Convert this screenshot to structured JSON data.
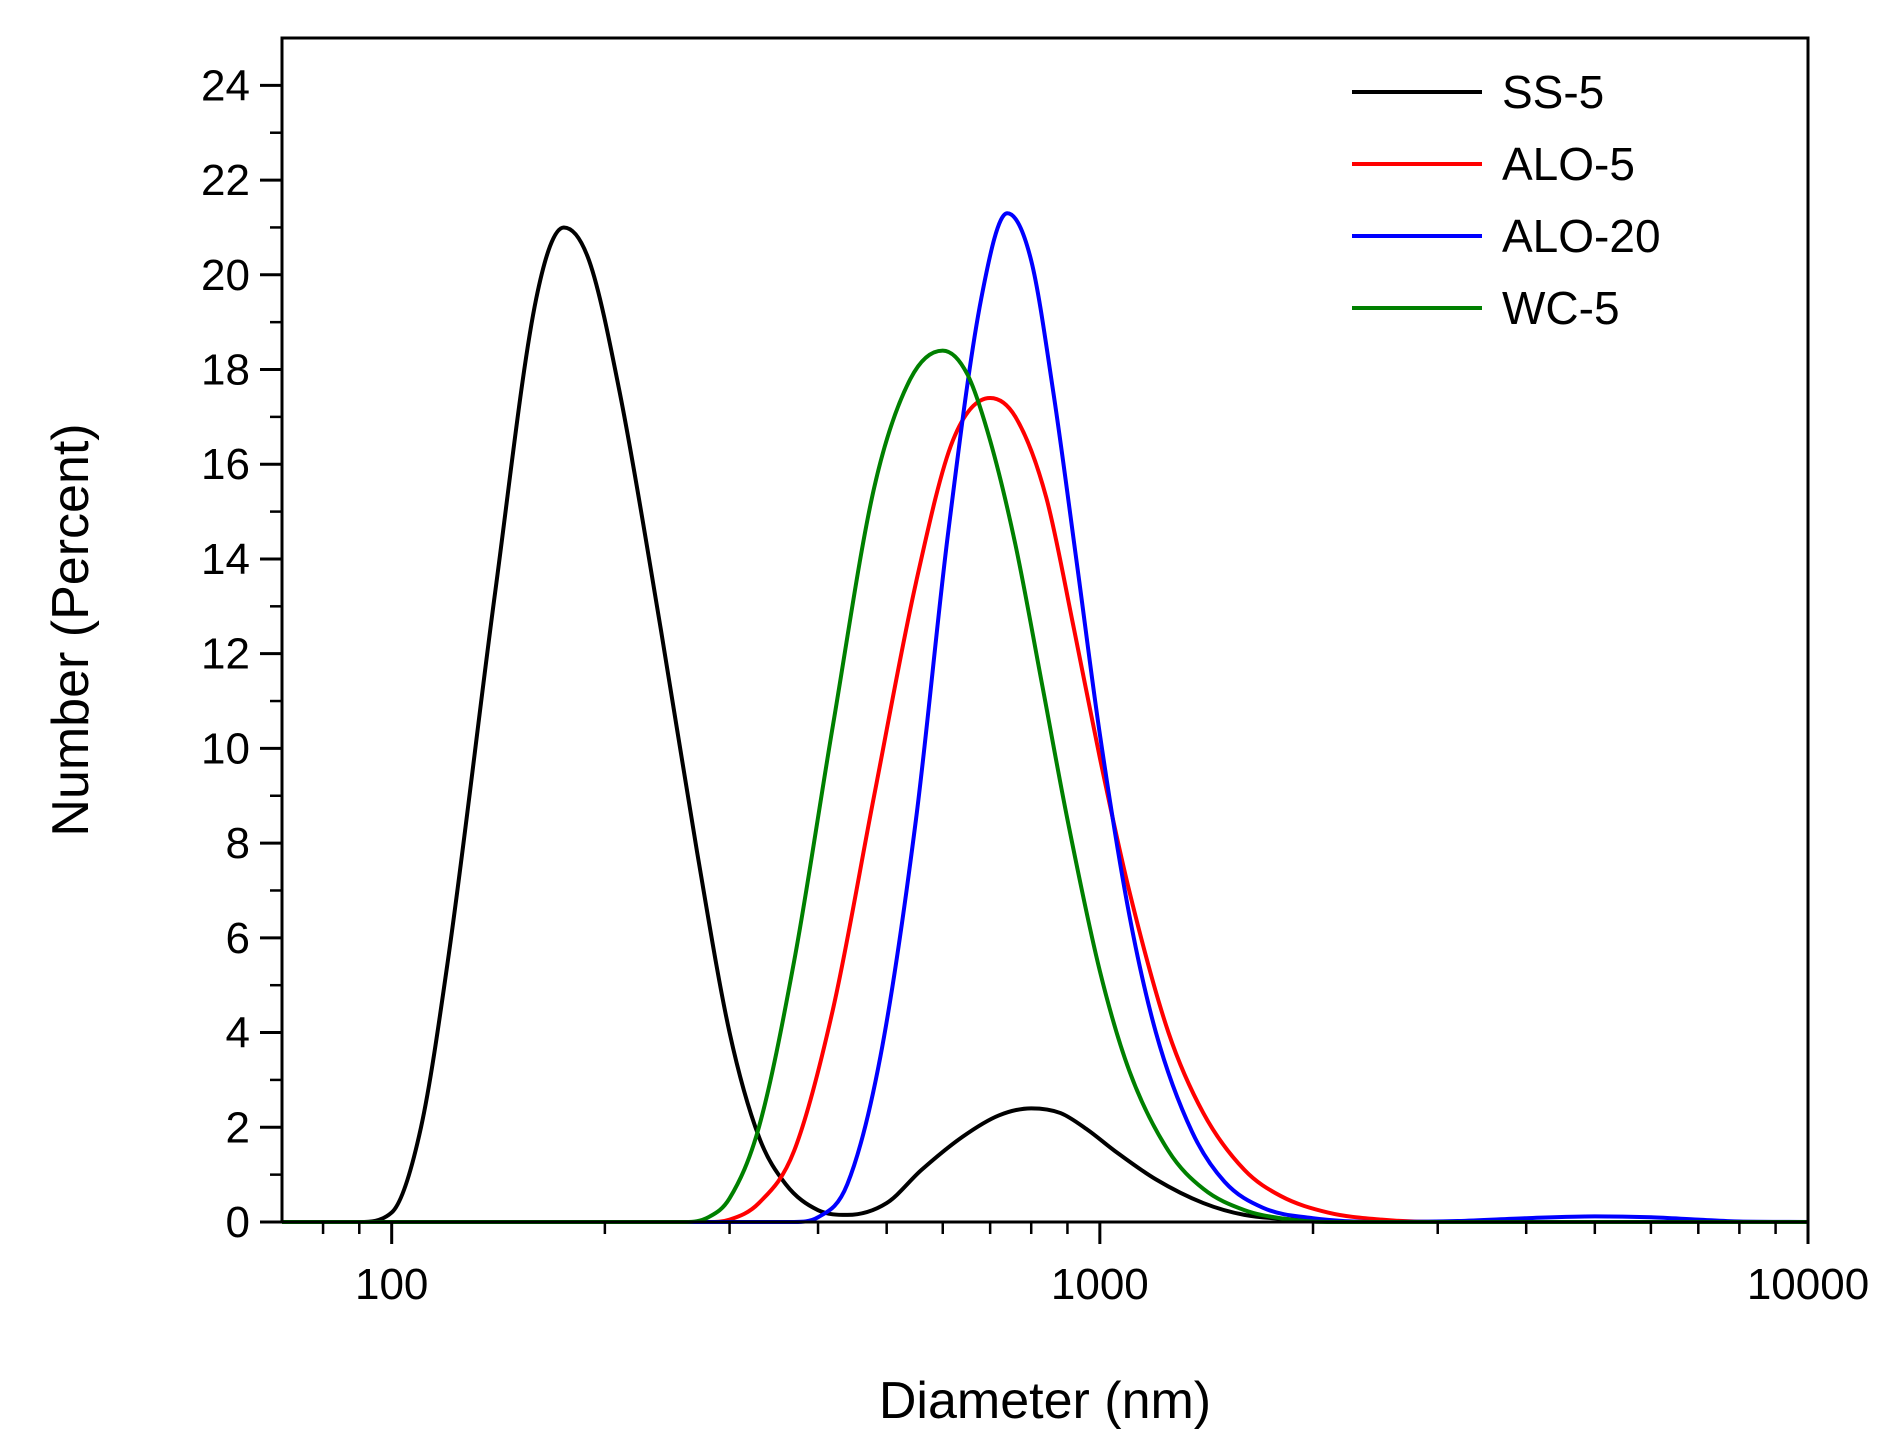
{
  "chart_data": {
    "type": "line",
    "title": "",
    "xlabel": "Diameter (nm)",
    "ylabel": "Number (Percent)",
    "xscale": "log",
    "xlim": [
      70,
      10000
    ],
    "ylim": [
      0,
      25
    ],
    "x_ticks": [
      100,
      1000,
      10000
    ],
    "x_tick_labels": [
      "100",
      "1000",
      "10000"
    ],
    "y_ticks": [
      0,
      2,
      4,
      6,
      8,
      10,
      12,
      14,
      16,
      18,
      20,
      22,
      24
    ],
    "y_tick_labels": [
      "0",
      "2",
      "4",
      "6",
      "8",
      "10",
      "12",
      "14",
      "16",
      "18",
      "20",
      "22",
      "24"
    ],
    "legend_position": "top-right",
    "series": [
      {
        "name": "SS-5",
        "color": "#000000",
        "x": [
          70,
          90,
          100,
          110,
          120,
          140,
          160,
          175,
          190,
          210,
          240,
          270,
          300,
          330,
          360,
          400,
          440,
          500,
          560,
          640,
          720,
          800,
          880,
          960,
          1050,
          1200,
          1400,
          1600,
          1900,
          2300,
          10000
        ],
        "y": [
          0,
          0,
          0.2,
          2,
          5.5,
          13.3,
          19.5,
          21.0,
          20.3,
          17.5,
          12.5,
          7.8,
          4.0,
          1.8,
          0.8,
          0.25,
          0.15,
          0.4,
          1.1,
          1.8,
          2.25,
          2.4,
          2.3,
          1.95,
          1.5,
          0.9,
          0.4,
          0.15,
          0.05,
          0,
          0
        ]
      },
      {
        "name": "ALO-5",
        "color": "#ff0000",
        "x": [
          70,
          280,
          300,
          330,
          370,
          420,
          480,
          550,
          620,
          700,
          760,
          840,
          920,
          1000,
          1100,
          1250,
          1400,
          1600,
          1800,
          2100,
          2500,
          3000,
          10000
        ],
        "y": [
          0,
          0,
          0.05,
          0.4,
          1.5,
          4.5,
          9.0,
          13.5,
          16.5,
          17.4,
          17.0,
          15.3,
          12.5,
          9.8,
          7.0,
          4.0,
          2.3,
          1.1,
          0.55,
          0.2,
          0.05,
          0,
          0
        ]
      },
      {
        "name": "ALO-20",
        "color": "#0000ff",
        "x": [
          70,
          370,
          400,
          440,
          490,
          550,
          610,
          680,
          740,
          800,
          860,
          930,
          1000,
          1100,
          1200,
          1350,
          1500,
          1700,
          2000,
          2500,
          3200,
          4000,
          5000,
          6000,
          7000,
          8000,
          10000
        ],
        "y": [
          0,
          0,
          0.1,
          0.8,
          3.5,
          8.5,
          14.5,
          19.5,
          21.3,
          20.3,
          17.5,
          13.8,
          10.3,
          6.5,
          4.0,
          1.9,
          0.85,
          0.3,
          0.08,
          0,
          0.02,
          0.08,
          0.12,
          0.1,
          0.05,
          0.01,
          0
        ]
      },
      {
        "name": "WC-5",
        "color": "#008000",
        "x": [
          70,
          260,
          280,
          300,
          330,
          370,
          420,
          480,
          540,
          600,
          650,
          700,
          760,
          830,
          900,
          1000,
          1100,
          1250,
          1400,
          1600,
          1800,
          2100,
          10000
        ],
        "y": [
          0,
          0,
          0.1,
          0.5,
          2.0,
          5.5,
          10.5,
          15.5,
          17.8,
          18.4,
          17.9,
          16.5,
          14.3,
          11.3,
          8.5,
          5.3,
          3.2,
          1.5,
          0.7,
          0.25,
          0.08,
          0,
          0
        ]
      }
    ]
  }
}
